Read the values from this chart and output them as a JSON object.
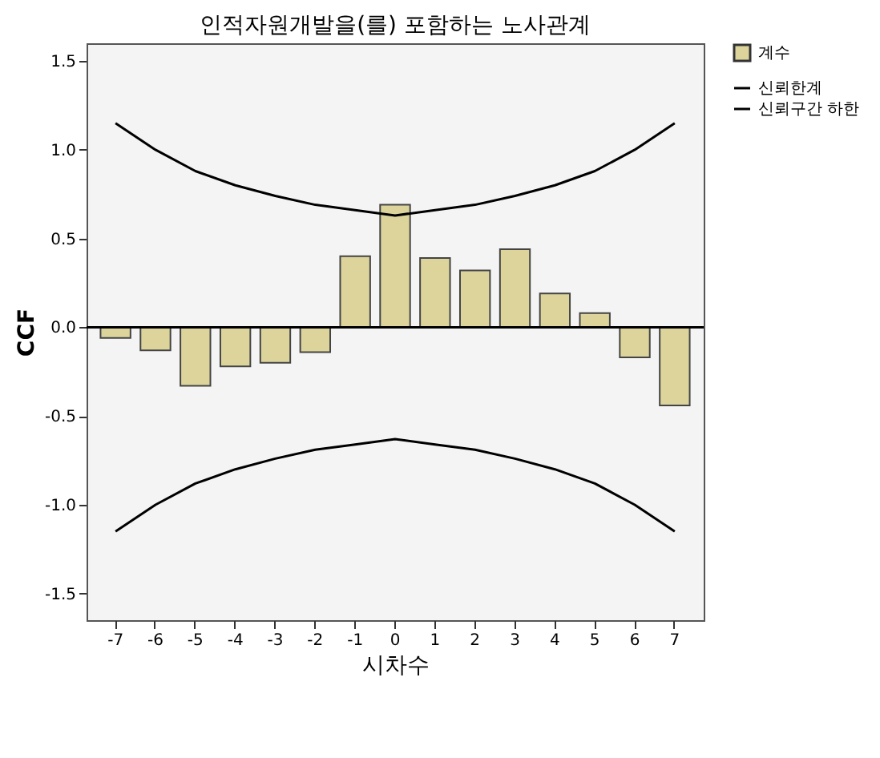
{
  "chart_data": {
    "type": "bar",
    "title": "인적자원개발을(를) 포함하는 노사관계",
    "xlabel": "시차수",
    "ylabel": "CCF",
    "categories": [
      "-7",
      "-6",
      "-5",
      "-4",
      "-3",
      "-2",
      "-1",
      "0",
      "1",
      "2",
      "3",
      "4",
      "5",
      "6",
      "7"
    ],
    "series": [
      {
        "name": "계수",
        "color": "#ddd49c",
        "values": [
          -0.06,
          -0.13,
          -0.33,
          -0.22,
          -0.2,
          -0.14,
          0.4,
          0.69,
          0.39,
          0.32,
          0.44,
          0.19,
          0.08,
          -0.17,
          -0.44
        ]
      },
      {
        "name": "신뢰한계",
        "type": "line",
        "color": "#000000",
        "values": [
          1.15,
          1.0,
          0.88,
          0.8,
          0.74,
          0.69,
          0.66,
          0.63,
          0.66,
          0.69,
          0.74,
          0.8,
          0.88,
          1.0,
          1.15
        ]
      },
      {
        "name": "신뢰구간 하한",
        "type": "line",
        "color": "#000000",
        "values": [
          -1.15,
          -1.0,
          -0.88,
          -0.8,
          -0.74,
          -0.69,
          -0.66,
          -0.63,
          -0.66,
          -0.69,
          -0.74,
          -0.8,
          -0.88,
          -1.0,
          -1.15
        ]
      }
    ],
    "ylim": [
      -1.65,
      1.6
    ],
    "yticks": [
      {
        "value": -1.5,
        "label": "-1.5"
      },
      {
        "value": -1,
        "label": "-1.0"
      },
      {
        "value": -0.5,
        "label": "-0.5"
      },
      {
        "value": 0,
        "label": "0.0"
      },
      {
        "value": 0.5,
        "label": "0.5"
      },
      {
        "value": 1,
        "label": "1.0"
      },
      {
        "value": 1.5,
        "label": "1.5"
      }
    ],
    "ref_lines": [
      {
        "axis": "y",
        "value": 0,
        "color": "#000000"
      }
    ],
    "legend": "right",
    "grid": false
  }
}
